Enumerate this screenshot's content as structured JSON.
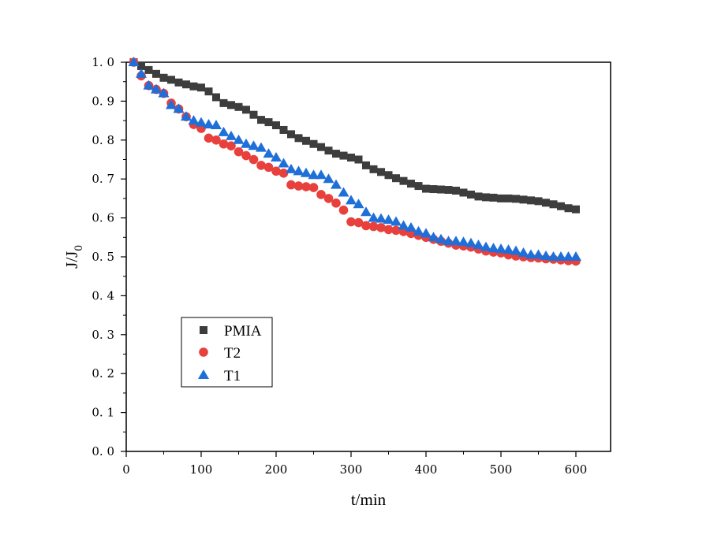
{
  "chart_data": {
    "type": "scatter",
    "xlabel": "t/min",
    "ylabel": {
      "main": "J/J",
      "sub": "0"
    },
    "xlim": [
      0,
      650
    ],
    "ylim": [
      0.0,
      1.0
    ],
    "xticks": [
      0,
      100,
      200,
      300,
      400,
      500,
      600
    ],
    "yticks": [
      0.0,
      0.1,
      0.2,
      0.3,
      0.4,
      0.5,
      0.6,
      0.7,
      0.8,
      0.9,
      1.0
    ],
    "xtick_labels": [
      "0",
      "100",
      "200",
      "300",
      "400",
      "500",
      "600"
    ],
    "ytick_labels": [
      "0. 0",
      "0. 1",
      "0. 2",
      "0. 3",
      "0. 4",
      "0. 5",
      "0. 6",
      "0. 7",
      "0. 8",
      "0. 9",
      "1. 0"
    ],
    "legend_position": "lower-left",
    "x": [
      10,
      20,
      30,
      40,
      50,
      60,
      70,
      80,
      90,
      100,
      110,
      120,
      130,
      140,
      150,
      160,
      170,
      180,
      190,
      200,
      210,
      220,
      230,
      240,
      250,
      260,
      270,
      280,
      290,
      300,
      310,
      320,
      330,
      340,
      350,
      360,
      370,
      380,
      390,
      400,
      410,
      420,
      430,
      440,
      450,
      460,
      470,
      480,
      490,
      500,
      510,
      520,
      530,
      540,
      550,
      560,
      570,
      580,
      590,
      600
    ],
    "series": [
      {
        "name": "PMIA",
        "color": "#3d3d3d",
        "marker": "square",
        "values": [
          1.0,
          0.99,
          0.98,
          0.97,
          0.96,
          0.955,
          0.948,
          0.943,
          0.938,
          0.935,
          0.925,
          0.91,
          0.895,
          0.89,
          0.885,
          0.878,
          0.865,
          0.852,
          0.846,
          0.838,
          0.826,
          0.815,
          0.805,
          0.798,
          0.79,
          0.782,
          0.773,
          0.765,
          0.76,
          0.755,
          0.75,
          0.735,
          0.725,
          0.718,
          0.71,
          0.702,
          0.695,
          0.688,
          0.682,
          0.675,
          0.674,
          0.673,
          0.672,
          0.67,
          0.665,
          0.66,
          0.655,
          0.653,
          0.652,
          0.65,
          0.65,
          0.649,
          0.647,
          0.645,
          0.643,
          0.639,
          0.635,
          0.63,
          0.625,
          0.622
        ]
      },
      {
        "name": "T2",
        "color": "#e8403c",
        "marker": "circle",
        "values": [
          1.0,
          0.965,
          0.94,
          0.93,
          0.92,
          0.895,
          0.88,
          0.86,
          0.84,
          0.83,
          0.805,
          0.8,
          0.79,
          0.785,
          0.77,
          0.76,
          0.75,
          0.735,
          0.73,
          0.72,
          0.715,
          0.685,
          0.682,
          0.68,
          0.678,
          0.66,
          0.65,
          0.638,
          0.62,
          0.59,
          0.588,
          0.58,
          0.578,
          0.575,
          0.57,
          0.568,
          0.565,
          0.56,
          0.555,
          0.55,
          0.545,
          0.54,
          0.535,
          0.53,
          0.528,
          0.525,
          0.52,
          0.515,
          0.512,
          0.51,
          0.505,
          0.502,
          0.5,
          0.498,
          0.497,
          0.495,
          0.494,
          0.492,
          0.49,
          0.489
        ]
      },
      {
        "name": "T1",
        "color": "#1f6fd8",
        "marker": "triangle",
        "values": [
          1.0,
          0.97,
          0.94,
          0.93,
          0.92,
          0.89,
          0.88,
          0.86,
          0.85,
          0.845,
          0.84,
          0.838,
          0.82,
          0.81,
          0.8,
          0.79,
          0.785,
          0.78,
          0.765,
          0.755,
          0.74,
          0.725,
          0.72,
          0.715,
          0.71,
          0.71,
          0.7,
          0.685,
          0.665,
          0.645,
          0.635,
          0.615,
          0.6,
          0.598,
          0.595,
          0.59,
          0.58,
          0.575,
          0.565,
          0.56,
          0.55,
          0.545,
          0.54,
          0.54,
          0.538,
          0.535,
          0.53,
          0.525,
          0.522,
          0.52,
          0.518,
          0.515,
          0.51,
          0.505,
          0.505,
          0.502,
          0.5,
          0.5,
          0.5,
          0.5
        ]
      }
    ]
  }
}
